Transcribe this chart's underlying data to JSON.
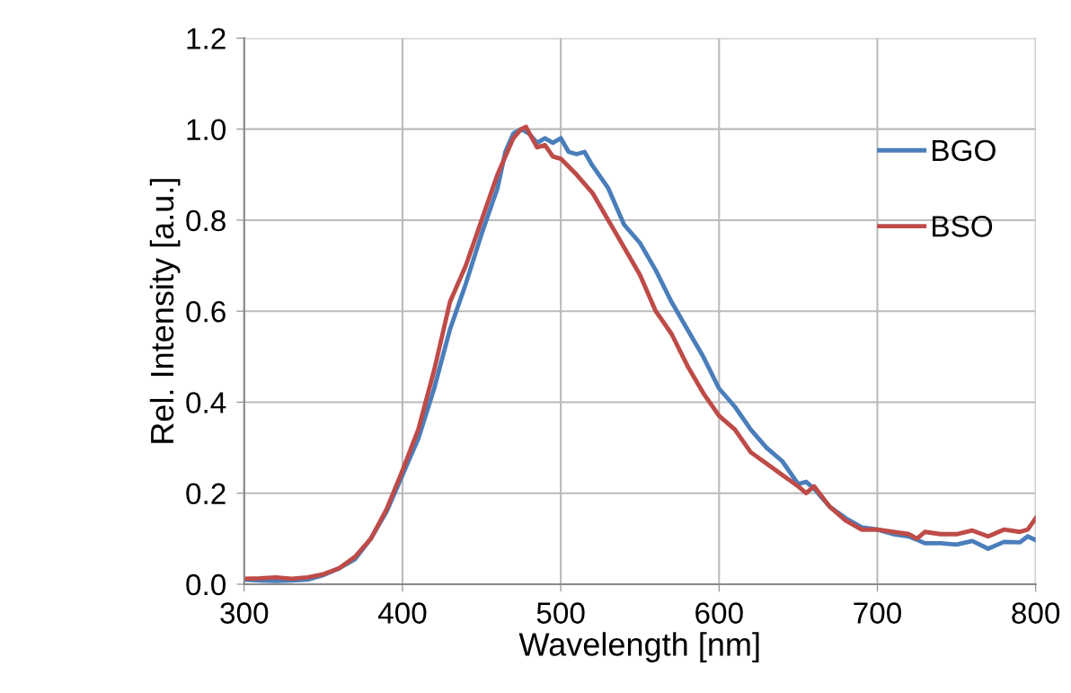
{
  "chart_data": {
    "type": "line",
    "xlabel": "Wavelength [nm]",
    "ylabel": "Rel. Intensity [a.u.]",
    "xlim": [
      300,
      800
    ],
    "xticks": [
      300,
      400,
      500,
      600,
      700,
      800
    ],
    "ylim": [
      0,
      1.2
    ],
    "yticks": [
      {
        "value": 0,
        "label": "0.0"
      },
      {
        "value": 0.2,
        "label": "0.2"
      },
      {
        "value": 0.4,
        "label": "0.4"
      },
      {
        "value": 0.6,
        "label": "0.6"
      },
      {
        "value": 0.8,
        "label": "0.8"
      },
      {
        "value": 1.0,
        "label": "1.0"
      },
      {
        "value": 1.2,
        "label": "1.2"
      }
    ],
    "grid": true,
    "legend": "right",
    "marker": "none",
    "line_style": "solid",
    "series": [
      {
        "name": "BGO",
        "color": "#4a7ebb",
        "x": [
          300,
          310,
          320,
          330,
          340,
          350,
          360,
          370,
          380,
          390,
          400,
          410,
          420,
          430,
          440,
          450,
          460,
          465,
          470,
          475,
          480,
          485,
          490,
          495,
          500,
          505,
          510,
          515,
          520,
          530,
          540,
          550,
          560,
          570,
          580,
          590,
          600,
          610,
          620,
          630,
          640,
          650,
          655,
          660,
          670,
          680,
          690,
          700,
          710,
          720,
          730,
          740,
          750,
          760,
          770,
          780,
          790,
          795,
          800
        ],
        "values": [
          0.01,
          0.008,
          0.007,
          0.008,
          0.01,
          0.02,
          0.035,
          0.055,
          0.1,
          0.16,
          0.24,
          0.32,
          0.43,
          0.56,
          0.66,
          0.77,
          0.87,
          0.95,
          0.99,
          1.0,
          0.99,
          0.97,
          0.98,
          0.97,
          0.98,
          0.95,
          0.945,
          0.95,
          0.92,
          0.87,
          0.79,
          0.75,
          0.69,
          0.62,
          0.56,
          0.5,
          0.43,
          0.39,
          0.34,
          0.3,
          0.27,
          0.22,
          0.225,
          0.21,
          0.17,
          0.145,
          0.125,
          0.12,
          0.11,
          0.105,
          0.09,
          0.09,
          0.087,
          0.095,
          0.078,
          0.093,
          0.092,
          0.105,
          0.097
        ]
      },
      {
        "name": "BSO",
        "color": "#be4b48",
        "x": [
          300,
          310,
          320,
          330,
          340,
          350,
          360,
          370,
          380,
          390,
          400,
          410,
          420,
          430,
          440,
          450,
          460,
          470,
          475,
          478,
          485,
          490,
          495,
          500,
          510,
          520,
          530,
          540,
          550,
          560,
          570,
          580,
          590,
          600,
          610,
          620,
          630,
          640,
          650,
          655,
          660,
          670,
          680,
          690,
          700,
          710,
          720,
          725,
          730,
          740,
          750,
          760,
          770,
          780,
          790,
          795,
          800
        ],
        "values": [
          0.012,
          0.013,
          0.015,
          0.012,
          0.015,
          0.022,
          0.035,
          0.06,
          0.1,
          0.165,
          0.25,
          0.34,
          0.47,
          0.62,
          0.7,
          0.8,
          0.9,
          0.98,
          1.0,
          1.005,
          0.96,
          0.965,
          0.94,
          0.935,
          0.9,
          0.86,
          0.8,
          0.74,
          0.68,
          0.6,
          0.55,
          0.48,
          0.42,
          0.37,
          0.34,
          0.29,
          0.265,
          0.24,
          0.215,
          0.2,
          0.215,
          0.17,
          0.14,
          0.12,
          0.12,
          0.115,
          0.11,
          0.1,
          0.115,
          0.11,
          0.11,
          0.118,
          0.105,
          0.12,
          0.115,
          0.12,
          0.145
        ]
      }
    ]
  }
}
